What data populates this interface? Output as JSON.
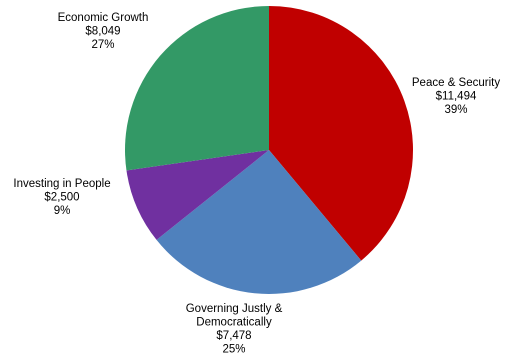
{
  "chart_data": {
    "type": "pie",
    "categories": [
      "Peace & Security",
      "Governing Justly & Democratically",
      "Investing in People",
      "Economic Growth"
    ],
    "values": [
      11494,
      7478,
      2500,
      8049
    ],
    "value_labels": [
      "$11,494",
      "$7,478",
      "$2,500",
      "$8,049"
    ],
    "percent_labels": [
      "39%",
      "25%",
      "9%",
      "27%"
    ],
    "label_lines": [
      [
        "Peace & Security"
      ],
      [
        "Governing Justly &",
        "Democratically"
      ],
      [
        "Investing in People"
      ],
      [
        "Economic Growth"
      ]
    ],
    "colors": [
      "#c00000",
      "#4f81bd",
      "#7030a0",
      "#339966"
    ],
    "start_angle_deg": 0,
    "direction": "clockwise",
    "legend": "none"
  }
}
